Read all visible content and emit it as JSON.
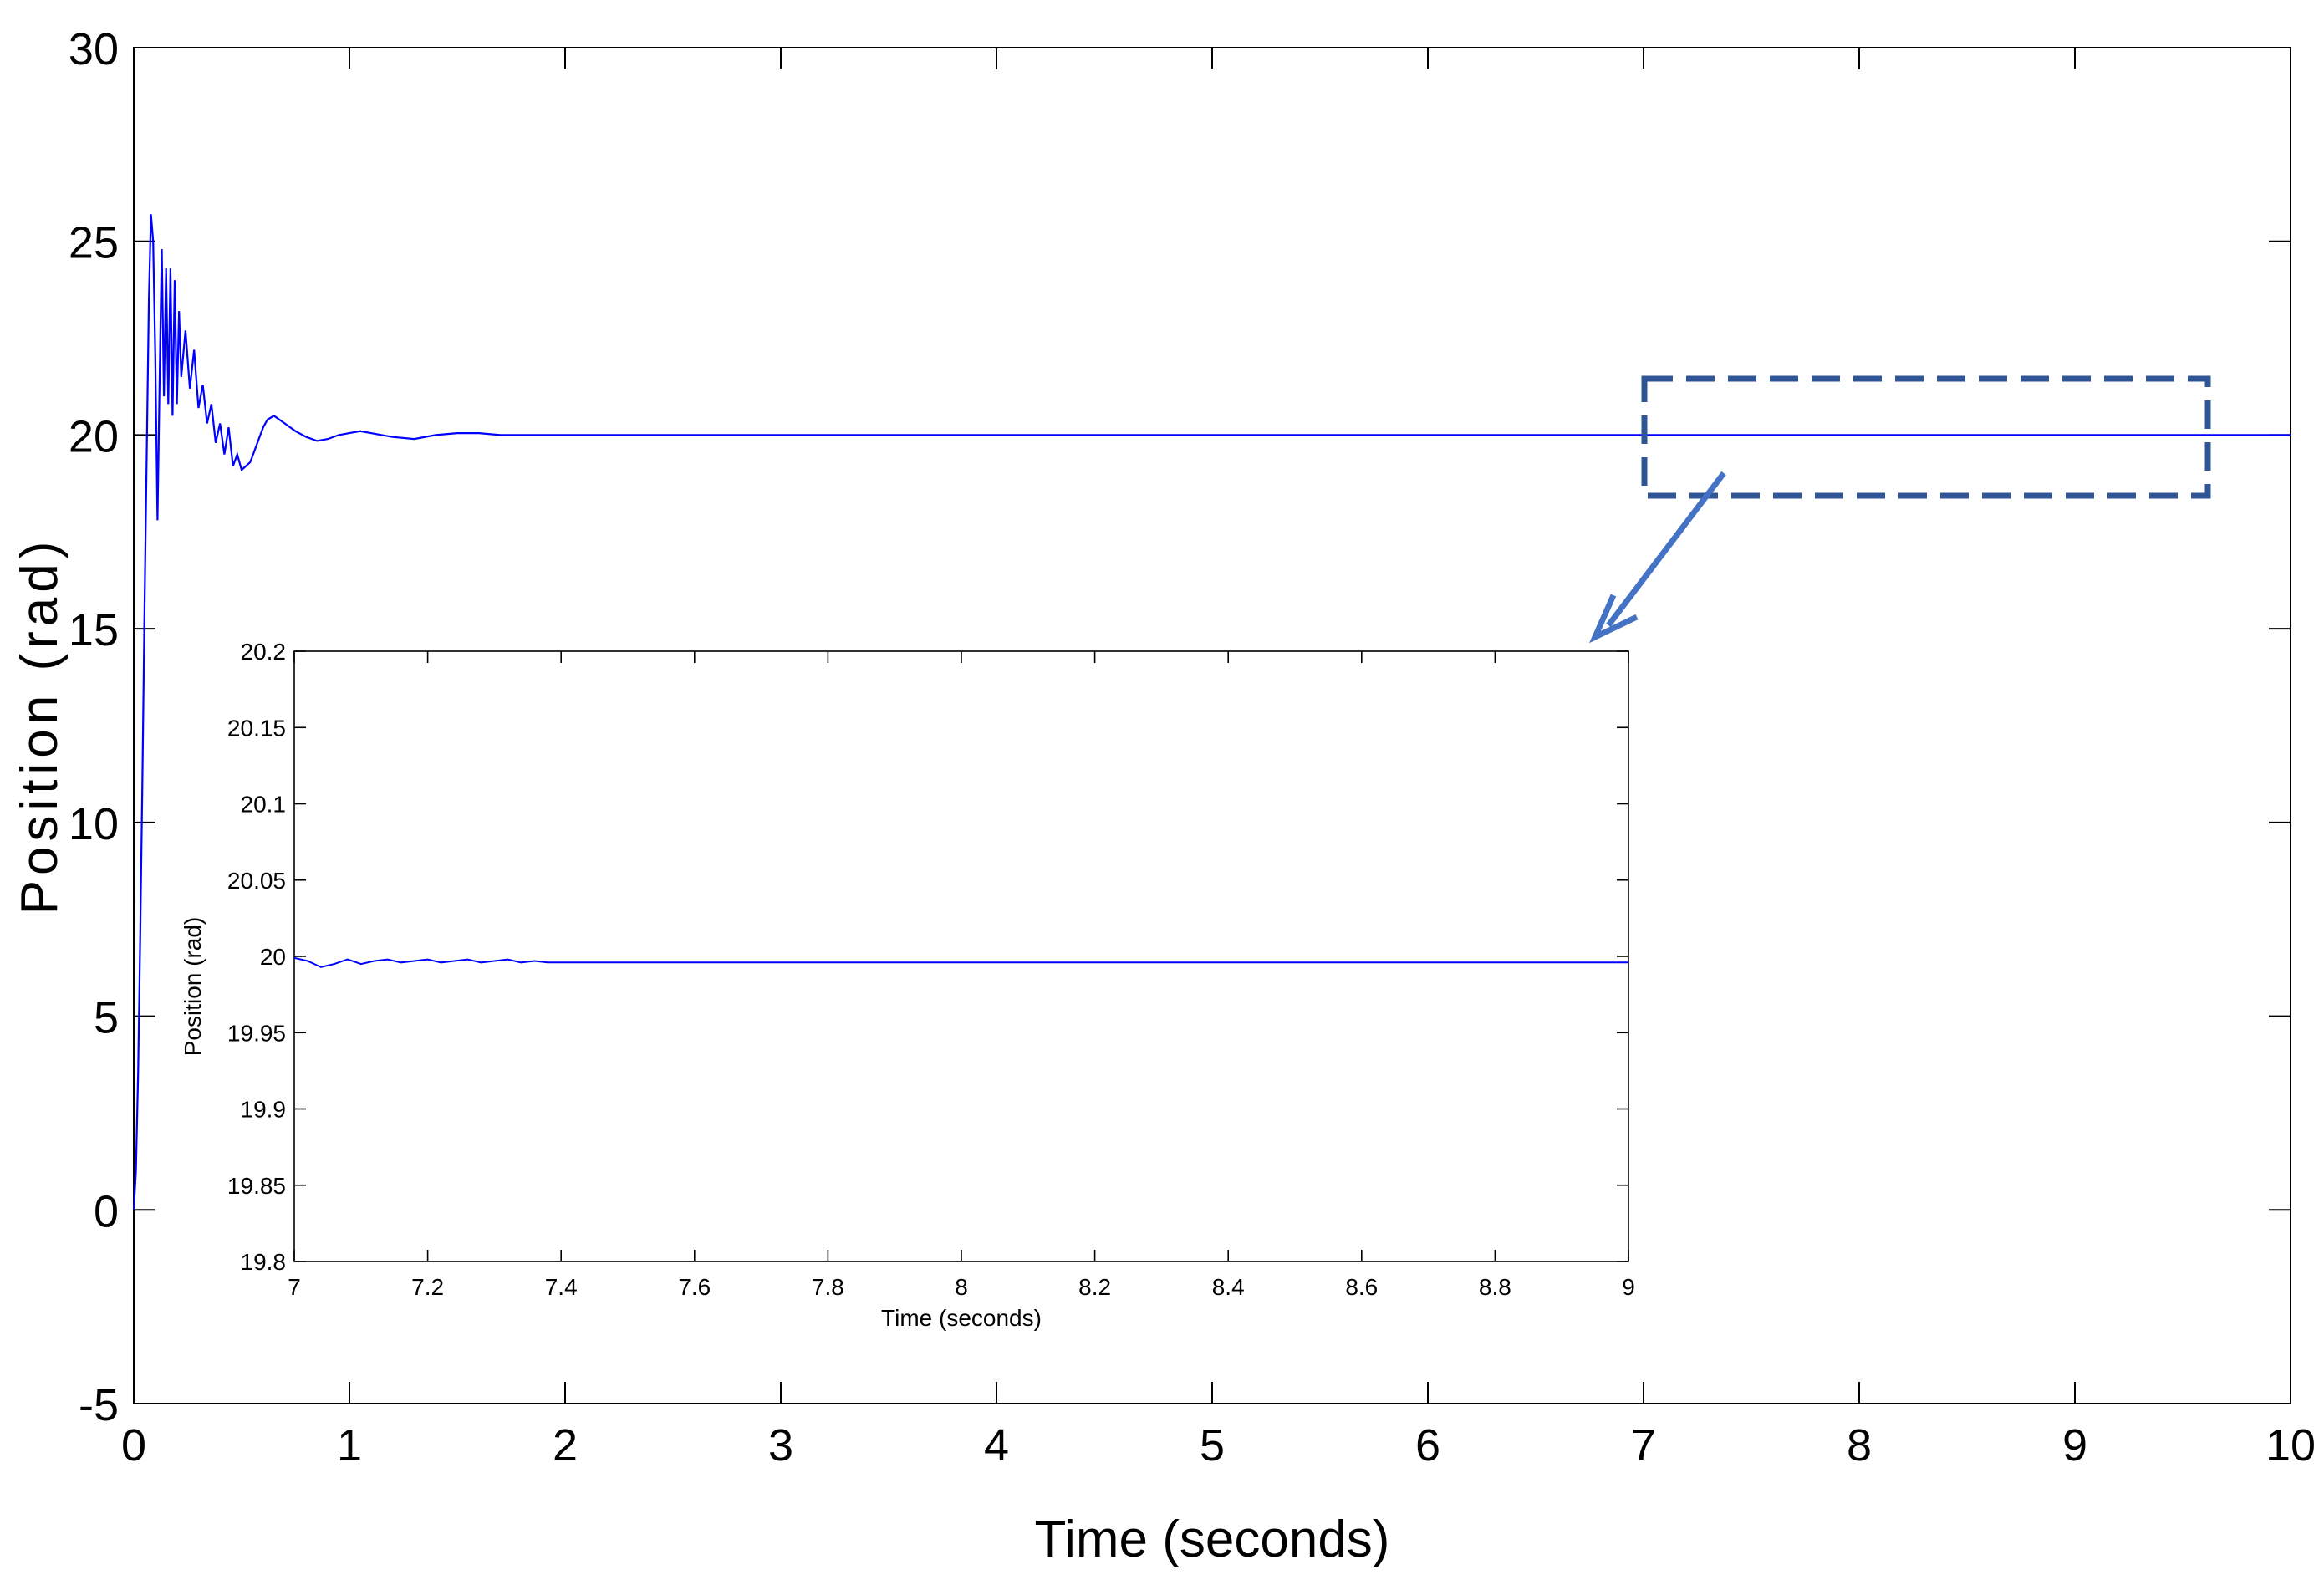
{
  "colors": {
    "line": "#0000ff",
    "annotation": "#2f5597",
    "arrow": "#4472c4",
    "axis": "#000000",
    "background": "#ffffff"
  },
  "chart_data": [
    {
      "type": "line",
      "title": "",
      "xlabel": "Time (seconds)",
      "ylabel": "Position (rad)",
      "xlim": [
        0,
        10
      ],
      "ylim": [
        -5,
        30
      ],
      "xticks": [
        "0",
        "1",
        "2",
        "3",
        "4",
        "5",
        "6",
        "7",
        "8",
        "9",
        "10"
      ],
      "yticks": [
        "-5",
        "0",
        "5",
        "10",
        "15",
        "20",
        "25",
        "30"
      ],
      "grid": false,
      "series": [
        {
          "x": [
            0,
            0.01,
            0.02,
            0.03,
            0.04,
            0.05,
            0.06,
            0.07,
            0.08,
            0.09,
            0.1,
            0.11,
            0.12,
            0.13,
            0.14,
            0.15,
            0.16,
            0.17,
            0.18,
            0.19,
            0.2,
            0.21,
            0.22,
            0.24,
            0.26,
            0.28,
            0.3,
            0.32,
            0.34,
            0.36,
            0.38,
            0.4,
            0.42,
            0.44,
            0.46,
            0.48,
            0.5,
            0.52,
            0.54,
            0.56,
            0.58,
            0.6,
            0.62,
            0.65,
            0.7,
            0.75,
            0.8,
            0.85,
            0.9,
            0.95,
            1.0,
            1.05,
            1.1,
            1.15,
            1.2,
            1.3,
            1.4,
            1.5,
            1.6,
            1.7,
            1.8,
            2.0,
            2.5,
            3.0,
            4.0,
            5.0,
            6.0,
            6.45,
            7.0,
            8.0,
            9.0,
            10.0
          ],
          "values": [
            0,
            1,
            3.5,
            7,
            11,
            15.5,
            19.5,
            23.5,
            25.7,
            25,
            22,
            17.8,
            21.5,
            24.8,
            21,
            24.3,
            20.8,
            24.3,
            20.5,
            24,
            20.8,
            23.2,
            21.5,
            22.7,
            21.2,
            22.2,
            20.7,
            21.3,
            20.3,
            20.8,
            19.8,
            20.3,
            19.5,
            20.2,
            19.2,
            19.5,
            19.1,
            19.2,
            19.3,
            19.6,
            19.9,
            20.2,
            20.4,
            20.5,
            20.3,
            20.1,
            19.95,
            19.85,
            19.9,
            20.0,
            20.05,
            20.1,
            20.05,
            20.0,
            19.95,
            19.9,
            20.0,
            20.05,
            20.05,
            20.0,
            20.0,
            20.0,
            20.0,
            20.0,
            20.0,
            20.0,
            20.0,
            20.0,
            20.0,
            20.0,
            20.0,
            20.0
          ]
        }
      ]
    },
    {
      "type": "line",
      "title": "",
      "xlabel": "Time (seconds)",
      "ylabel": "Position (rad)",
      "xlim": [
        7,
        9
      ],
      "ylim": [
        19.8,
        20.2
      ],
      "xticks": [
        "7",
        "7.2",
        "7.4",
        "7.6",
        "7.8",
        "8",
        "8.2",
        "8.4",
        "8.6",
        "8.8",
        "9"
      ],
      "yticks": [
        "19.8",
        "19.85",
        "19.9",
        "19.95",
        "20",
        "20.05",
        "20.1",
        "20.15",
        "20.2"
      ],
      "grid": false,
      "series": [
        {
          "x": [
            7.0,
            7.02,
            7.04,
            7.06,
            7.08,
            7.1,
            7.12,
            7.14,
            7.16,
            7.18,
            7.2,
            7.22,
            7.24,
            7.26,
            7.28,
            7.3,
            7.32,
            7.34,
            7.36,
            7.38,
            7.4,
            7.5,
            7.6,
            7.7,
            7.8,
            7.9,
            8.0,
            8.2,
            8.4,
            8.6,
            8.8,
            8.9,
            9.0
          ],
          "values": [
            19.999,
            19.997,
            19.993,
            19.995,
            19.998,
            19.995,
            19.997,
            19.998,
            19.996,
            19.997,
            19.998,
            19.996,
            19.997,
            19.998,
            19.996,
            19.997,
            19.998,
            19.996,
            19.997,
            19.996,
            19.996,
            19.996,
            19.996,
            19.996,
            19.996,
            19.996,
            19.996,
            19.996,
            19.996,
            19.996,
            19.996,
            19.996,
            19.996
          ]
        }
      ]
    }
  ]
}
